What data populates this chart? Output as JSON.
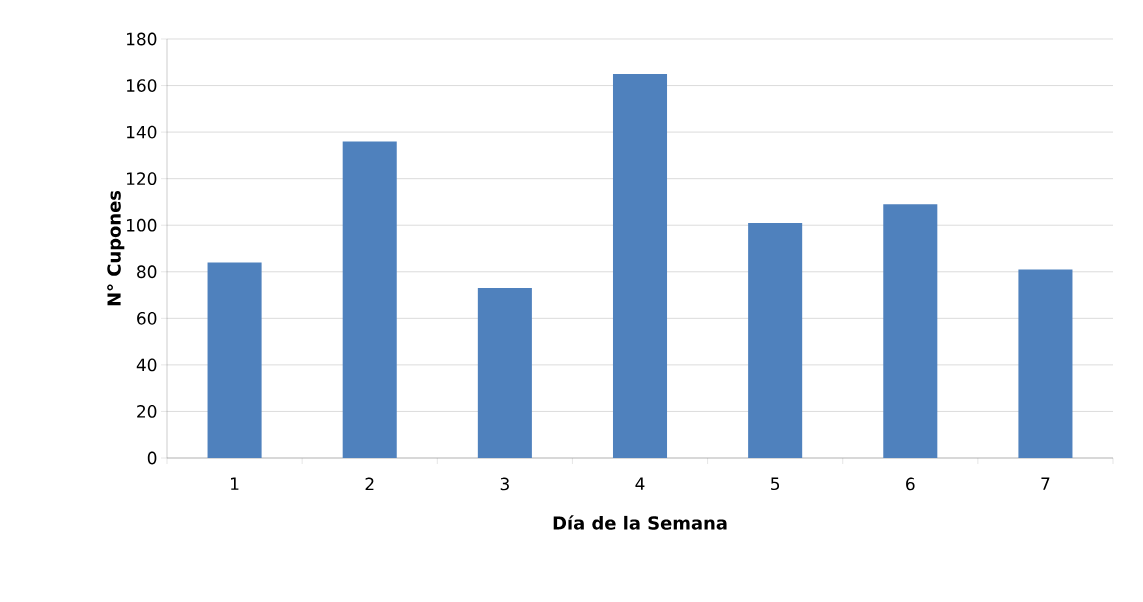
{
  "chart_data": {
    "type": "bar",
    "xlabel": "Día de la Semana",
    "ylabel": "N° Cupones",
    "categories": [
      "1",
      "2",
      "3",
      "4",
      "5",
      "6",
      "7"
    ],
    "values": [
      84,
      136,
      73,
      165,
      101,
      109,
      81
    ],
    "color": "#4f81bd",
    "ylim": [
      0,
      180
    ],
    "yticks": [
      0,
      20,
      40,
      60,
      80,
      100,
      120,
      140,
      160,
      180
    ],
    "grid": "y"
  }
}
